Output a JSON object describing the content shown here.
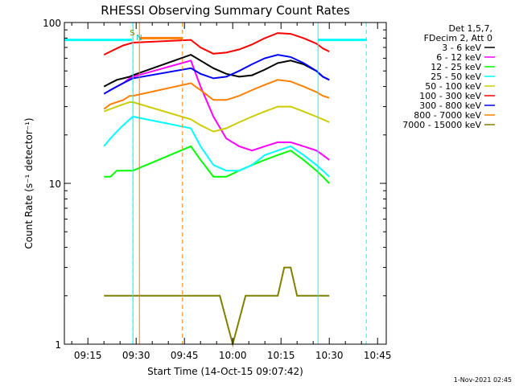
{
  "chart_data": {
    "type": "line",
    "title": "RHESSI Observing Summary Count Rates",
    "xlabel": "Start Time (14-Oct-15 09:07:42)",
    "ylabel": "Count Rate (s⁻¹ detector⁻¹)",
    "ylog": true,
    "ylim": [
      1,
      100
    ],
    "xlim_minutes": [
      547.7,
      647.7
    ],
    "x_ticks": [
      "09:15",
      "09:30",
      "09:45",
      "10:00",
      "10:15",
      "10:30",
      "10:45"
    ],
    "x_tick_minutes": [
      555,
      570,
      585,
      600,
      615,
      630,
      645
    ],
    "y_ticks": [
      "1",
      "10",
      "100"
    ],
    "y_tick_values": [
      1,
      10,
      100
    ],
    "minor_x_step_minutes": 5,
    "markers": {
      "saa_label": "S",
      "night_label": "N",
      "legend_header": [
        "Det 1,5,7,",
        "FDecim 2, Att 0"
      ],
      "saa_color": "#00ffff",
      "night_color": "#ff8000",
      "dashed_minutes": [
        569.0,
        584.4,
        641.5
      ],
      "solid_cyan_minutes": [
        569.0,
        626.5
      ],
      "solid_orange_minutes": [
        571.0
      ],
      "orange_bar_minutes": [
        571.0,
        584.4
      ],
      "orange_bar_value": 80,
      "cyan_bar_ranges_minutes": [
        [
          547.7,
          568.7
        ],
        [
          626.5,
          641.7
        ]
      ],
      "cyan_bar_value": 78
    },
    "series": [
      {
        "name": "3 - 6 keV",
        "color": "#000000",
        "x": [
          560,
          562,
          564,
          566,
          568,
          569,
          587,
          590,
          594,
          598,
          602,
          606,
          610,
          614,
          618,
          622,
          626,
          628,
          630
        ],
        "values": [
          40,
          42,
          44,
          45,
          46,
          47,
          63,
          58,
          52,
          48,
          46,
          47,
          51,
          56,
          58,
          55,
          50,
          46,
          44
        ]
      },
      {
        "name": "6 - 12 keV",
        "color": "#ff00ff",
        "x": [
          560,
          562,
          564,
          566,
          568,
          569,
          587,
          590,
          594,
          598,
          602,
          606,
          610,
          614,
          618,
          622,
          626,
          628,
          630
        ],
        "values": [
          36,
          38,
          40,
          42,
          45,
          46,
          58,
          40,
          26,
          19,
          17,
          16,
          17,
          18,
          18,
          17,
          16,
          15,
          14
        ]
      },
      {
        "name": "12 - 25 keV",
        "color": "#00ff00",
        "x": [
          560,
          562,
          564,
          566,
          568,
          569,
          587,
          590,
          594,
          598,
          602,
          606,
          610,
          614,
          618,
          622,
          626,
          628,
          630
        ],
        "values": [
          11,
          11,
          12,
          12,
          12,
          12,
          17,
          14,
          11,
          11,
          12,
          13,
          14,
          15,
          16,
          14,
          12,
          11,
          10
        ]
      },
      {
        "name": "25 - 50 keV",
        "color": "#00ffff",
        "x": [
          560,
          562,
          564,
          566,
          568,
          569,
          587,
          590,
          594,
          598,
          602,
          606,
          610,
          614,
          618,
          622,
          626,
          628,
          630
        ],
        "values": [
          17,
          19,
          21,
          23,
          25,
          26,
          22,
          17,
          13,
          12,
          12,
          13,
          15,
          16,
          17,
          15,
          13,
          12,
          11
        ]
      },
      {
        "name": "50 - 100 keV",
        "color": "#cccc00",
        "x": [
          560,
          562,
          564,
          566,
          568,
          569,
          587,
          590,
          594,
          598,
          602,
          606,
          610,
          614,
          618,
          622,
          626,
          628,
          630
        ],
        "values": [
          28,
          29,
          30,
          31,
          32,
          32,
          25,
          23,
          21,
          22,
          24,
          26,
          28,
          30,
          30,
          28,
          26,
          25,
          24
        ]
      },
      {
        "name": "100 - 300 keV",
        "color": "#ff0000",
        "x": [
          560,
          562,
          564,
          566,
          568,
          569,
          587,
          590,
          594,
          598,
          602,
          606,
          610,
          614,
          618,
          622,
          626,
          628,
          630
        ],
        "values": [
          63,
          66,
          69,
          72,
          74,
          75,
          78,
          70,
          64,
          65,
          68,
          73,
          80,
          86,
          85,
          80,
          74,
          69,
          66
        ]
      },
      {
        "name": "300 - 800 keV",
        "color": "#0000ff",
        "x": [
          560,
          562,
          564,
          566,
          568,
          569,
          587,
          590,
          594,
          598,
          602,
          606,
          610,
          614,
          618,
          622,
          626,
          628,
          630
        ],
        "values": [
          36,
          38,
          40,
          42,
          44,
          45,
          52,
          48,
          45,
          46,
          50,
          55,
          60,
          63,
          61,
          56,
          50,
          46,
          44
        ]
      },
      {
        "name": "800 - 7000 keV",
        "color": "#ff8000",
        "x": [
          560,
          562,
          564,
          566,
          568,
          569,
          587,
          590,
          594,
          598,
          602,
          606,
          610,
          614,
          618,
          622,
          626,
          628,
          630
        ],
        "values": [
          29,
          31,
          32,
          33,
          35,
          35,
          42,
          38,
          33,
          33,
          35,
          38,
          41,
          44,
          43,
          40,
          37,
          35,
          34
        ]
      },
      {
        "name": "7000 - 15000 keV",
        "color": "#808000",
        "x": [
          560,
          563,
          566,
          569,
          588,
          596,
          600,
          604,
          606,
          608,
          610,
          612,
          614,
          616,
          618,
          620,
          624,
          628,
          630
        ],
        "values": [
          2,
          2,
          2,
          2,
          2,
          2,
          1,
          2,
          2,
          2,
          2,
          2,
          2,
          3,
          3,
          2,
          2,
          2,
          2
        ]
      }
    ]
  },
  "footer": {
    "timestamp": "1-Nov-2021 02:45"
  }
}
